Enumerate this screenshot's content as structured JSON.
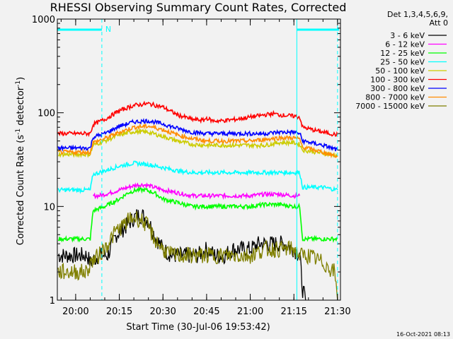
{
  "chart_data": {
    "type": "line",
    "title": "RHESSI Observing Summary Count Rates, Corrected",
    "xlabel": "Start Time (30-Jul-06 19:53:42)",
    "ylabel_parts": [
      "Corrected Count Rate (s",
      "-1",
      " detector",
      "-1",
      ")"
    ],
    "yscale": "log",
    "ylim": [
      1,
      1000
    ],
    "xlim": [
      "19:53:42",
      "21:31:00"
    ],
    "x_ticks": [
      "20:00",
      "20:15",
      "20:30",
      "20:45",
      "21:00",
      "21:15",
      "21:30"
    ],
    "y_ticks": [
      "1",
      "10",
      "100",
      "1000"
    ],
    "grid": false,
    "legend_position": "right",
    "legend_header": [
      "Det 1,3,4,5,6,9,",
      "Att 0"
    ],
    "timestamp": "16-Oct-2021 08:13",
    "night_marker": "N",
    "attenuator_color": "#00ffff",
    "series": [
      {
        "name": "3 - 6 keV",
        "color": "#000000",
        "x": [
          "19:54",
          "20:04",
          "20:05",
          "20:08",
          "20:11",
          "20:14",
          "20:17",
          "20:19",
          "20:21",
          "20:23",
          "20:25",
          "20:27",
          "20:30",
          "20:33",
          "20:36",
          "20:39",
          "20:42",
          "20:45",
          "20:48",
          "20:51",
          "20:54",
          "20:57",
          "21:00",
          "21:03",
          "21:06",
          "21:09",
          "21:12",
          "21:15",
          "21:17",
          "21:18",
          "21:19"
        ],
        "y": [
          3,
          3,
          2.5,
          3,
          3,
          5,
          6,
          7,
          8,
          8,
          7,
          5,
          3.5,
          3,
          3,
          3,
          3,
          3.5,
          3,
          3,
          3.5,
          3.5,
          3.5,
          4,
          4,
          4,
          4,
          3.5,
          3,
          1.3,
          1
        ]
      },
      {
        "name": "6 - 12 keV",
        "color": "#ff00ff",
        "x": [
          "20:06",
          "20:08",
          "20:12",
          "20:15",
          "20:18",
          "20:21",
          "20:24",
          "20:27",
          "20:30",
          "20:35",
          "20:40",
          "20:45",
          "20:50",
          "20:55",
          "21:00",
          "21:05",
          "21:10",
          "21:15",
          "21:17"
        ],
        "y": [
          13,
          13,
          14,
          15,
          16,
          17,
          17,
          16,
          15,
          14,
          13,
          13,
          13,
          13,
          13,
          13.5,
          13.5,
          13,
          13
        ]
      },
      {
        "name": "12 - 25 keV",
        "color": "#00ff00",
        "x": [
          "19:54",
          "20:05",
          "20:06",
          "20:10",
          "20:15",
          "20:18",
          "20:21",
          "20:24",
          "20:27",
          "20:30",
          "20:35",
          "20:40",
          "20:45",
          "20:50",
          "20:55",
          "21:00",
          "21:05",
          "21:10",
          "21:15",
          "21:17",
          "21:18",
          "21:25",
          "21:30"
        ],
        "y": [
          4.5,
          4.5,
          9,
          10,
          12,
          14,
          15,
          15,
          14,
          12,
          11,
          10,
          10,
          10,
          10,
          10,
          10.5,
          10.5,
          10,
          10,
          4.5,
          4.5,
          4.5
        ]
      },
      {
        "name": "25 - 50 keV",
        "color": "#00ffff",
        "x": [
          "19:54",
          "20:05",
          "20:06",
          "20:10",
          "20:15",
          "20:20",
          "20:25",
          "20:30",
          "20:35",
          "20:40",
          "20:45",
          "20:50",
          "20:55",
          "21:00",
          "21:05",
          "21:10",
          "21:15",
          "21:17",
          "21:18",
          "21:25",
          "21:30"
        ],
        "y": [
          15,
          15,
          22,
          24,
          27,
          29,
          28,
          26,
          24,
          23,
          23,
          23,
          23,
          23,
          23,
          23,
          23,
          23,
          16,
          16,
          15
        ]
      },
      {
        "name": "50 - 100 keV",
        "color": "#cccc00",
        "x": [
          "19:54",
          "20:05",
          "20:06",
          "20:10",
          "20:15",
          "20:20",
          "20:25",
          "20:30",
          "20:35",
          "20:40",
          "20:45",
          "20:50",
          "20:55",
          "21:00",
          "21:05",
          "21:10",
          "21:15",
          "21:17",
          "21:18",
          "21:25",
          "21:30"
        ],
        "y": [
          36,
          36,
          45,
          50,
          58,
          63,
          62,
          56,
          50,
          46,
          45,
          45,
          45,
          45,
          45,
          48,
          48,
          46,
          40,
          37,
          35
        ]
      },
      {
        "name": "100 - 300 keV",
        "color": "#ff0000",
        "x": [
          "19:54",
          "20:05",
          "20:06",
          "20:10",
          "20:15",
          "20:20",
          "20:25",
          "20:30",
          "20:35",
          "20:40",
          "20:44",
          "20:45",
          "20:47",
          "20:50",
          "20:55",
          "21:00",
          "21:05",
          "21:08",
          "21:10",
          "21:15",
          "21:17",
          "21:18",
          "21:25",
          "21:30"
        ],
        "y": [
          60,
          60,
          75,
          85,
          105,
          120,
          125,
          115,
          95,
          85,
          83,
          88,
          82,
          82,
          85,
          90,
          95,
          98,
          95,
          92,
          90,
          70,
          62,
          58
        ]
      },
      {
        "name": "300 - 800 keV",
        "color": "#0000ff",
        "x": [
          "19:54",
          "20:05",
          "20:06",
          "20:10",
          "20:15",
          "20:20",
          "20:25",
          "20:30",
          "20:35",
          "20:40",
          "20:45",
          "20:50",
          "20:55",
          "21:00",
          "21:05",
          "21:10",
          "21:15",
          "21:17",
          "21:18",
          "21:25",
          "21:30"
        ],
        "y": [
          42,
          42,
          55,
          60,
          72,
          80,
          82,
          76,
          68,
          62,
          60,
          60,
          60,
          60,
          60,
          62,
          62,
          60,
          50,
          45,
          40
        ]
      },
      {
        "name": "800 - 7000 keV",
        "color": "#ff8c00",
        "x": [
          "19:54",
          "20:05",
          "20:06",
          "20:10",
          "20:15",
          "20:20",
          "20:25",
          "20:30",
          "20:35",
          "20:40",
          "20:45",
          "20:50",
          "20:55",
          "21:00",
          "21:05",
          "21:10",
          "21:15",
          "21:17",
          "21:18",
          "21:25",
          "21:30"
        ],
        "y": [
          38,
          38,
          48,
          53,
          62,
          70,
          72,
          66,
          58,
          53,
          50,
          50,
          50,
          50,
          52,
          54,
          54,
          52,
          43,
          38,
          34
        ]
      },
      {
        "name": "7000 - 15000 keV",
        "color": "#808000",
        "x": [
          "19:54",
          "20:04",
          "20:05",
          "20:08",
          "20:11",
          "20:14",
          "20:17",
          "20:19",
          "20:21",
          "20:23",
          "20:25",
          "20:27",
          "20:30",
          "20:33",
          "20:36",
          "20:40",
          "20:45",
          "20:50",
          "20:55",
          "21:00",
          "21:05",
          "21:10",
          "21:15",
          "21:17",
          "21:20",
          "21:25",
          "21:29",
          "21:30"
        ],
        "y": [
          2,
          2,
          2.5,
          3,
          4,
          5.5,
          6.5,
          7.5,
          7.5,
          7,
          6,
          4.5,
          3.5,
          3,
          3,
          3,
          3,
          3,
          3,
          3,
          3.5,
          3.5,
          3.5,
          3,
          3,
          2.5,
          2,
          1
        ]
      }
    ]
  }
}
